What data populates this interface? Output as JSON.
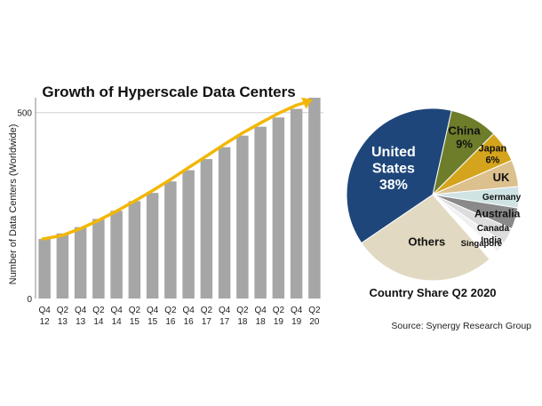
{
  "colors": {
    "bar": "#a6a6a6",
    "trend": "#f2b705",
    "gridline": "#cfcfcf",
    "axis": "#888888"
  },
  "chart_data": [
    {
      "type": "bar",
      "title": "Growth of Hyperscale Data Centers",
      "ylabel": "Number of Data Centers (Worldwide)",
      "xlabel": "",
      "ylim": [
        0,
        540
      ],
      "yticks": [
        0,
        500
      ],
      "grid": true,
      "categories": [
        [
          "Q4",
          "12"
        ],
        [
          "Q2",
          "13"
        ],
        [
          "Q4",
          "13"
        ],
        [
          "Q2",
          "14"
        ],
        [
          "Q4",
          "14"
        ],
        [
          "Q2",
          "15"
        ],
        [
          "Q4",
          "15"
        ],
        [
          "Q2",
          "16"
        ],
        [
          "Q4",
          "16"
        ],
        [
          "Q2",
          "17"
        ],
        [
          "Q4",
          "17"
        ],
        [
          "Q2",
          "18"
        ],
        [
          "Q4",
          "18"
        ],
        [
          "Q2",
          "19"
        ],
        [
          "Q4",
          "19"
        ],
        [
          "Q2",
          "20"
        ]
      ],
      "values": [
        160,
        175,
        192,
        214,
        236,
        262,
        284,
        315,
        345,
        375,
        407,
        438,
        462,
        487,
        510,
        540
      ],
      "trend": {
        "type": "line",
        "arrow": true,
        "values": [
          160,
          170,
          188,
          210,
          235,
          262,
          290,
          320,
          352,
          383,
          415,
          445,
          472,
          498,
          520,
          540
        ]
      }
    },
    {
      "type": "pie",
      "title": "Country Share Q2 2020",
      "source": "Source: Synergy Research Group",
      "slices": [
        {
          "name": "China",
          "label_lines": [
            "China",
            "9%"
          ],
          "value": 9,
          "color": "#6e7d2a",
          "text_color": "#111111"
        },
        {
          "name": "Japan",
          "label_lines": [
            "Japan",
            "6%"
          ],
          "value": 6,
          "color": "#d4a41c",
          "text_color": "#111111"
        },
        {
          "name": "UK",
          "label_lines": [
            "UK"
          ],
          "value": 5,
          "color": "#dcc08e",
          "text_color": "#111111"
        },
        {
          "name": "Germany",
          "label_lines": [
            "Germany"
          ],
          "value": 4,
          "color": "#cfe3e4",
          "text_color": "#111111"
        },
        {
          "name": "Australia",
          "label_lines": [
            "Australia"
          ],
          "value": 4,
          "color": "#8a8a8a",
          "text_color": "#111111"
        },
        {
          "name": "Canada",
          "label_lines": [
            "Canada"
          ],
          "value": 3,
          "color": "#dcdcdc",
          "text_color": "#111111"
        },
        {
          "name": "India",
          "label_lines": [
            "India"
          ],
          "value": 2,
          "color": "#f0f0f0",
          "text_color": "#111111"
        },
        {
          "name": "Singapore",
          "label_lines": [
            "Singapore"
          ],
          "value": 2,
          "color": "#ffffff",
          "text_color": "#111111"
        },
        {
          "name": "Others",
          "label_lines": [
            "Others"
          ],
          "value": 27,
          "color": "#e1d9c1",
          "text_color": "#111111"
        },
        {
          "name": "United States",
          "label_lines": [
            "United",
            "States",
            "38%"
          ],
          "value": 38,
          "color": "#1e467a",
          "text_color": "#ffffff"
        }
      ]
    }
  ]
}
